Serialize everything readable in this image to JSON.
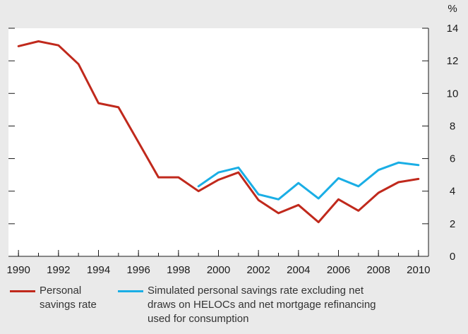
{
  "chart_data": {
    "type": "line",
    "title": "",
    "xlabel": "",
    "ylabel": "%",
    "xlim": [
      1989.5,
      2010.5
    ],
    "ylim": [
      0,
      14
    ],
    "x_ticks": [
      {
        "value": 1990,
        "label": "1990"
      },
      {
        "value": 1992,
        "label": "1992"
      },
      {
        "value": 1994,
        "label": "1994"
      },
      {
        "value": 1996,
        "label": "1996"
      },
      {
        "value": 1998,
        "label": "1998"
      },
      {
        "value": 2000,
        "label": "2000"
      },
      {
        "value": 2002,
        "label": "2002"
      },
      {
        "value": 2004,
        "label": "2004"
      },
      {
        "value": 2006,
        "label": "2006"
      },
      {
        "value": 2008,
        "label": "2008"
      },
      {
        "value": 2010,
        "label": "2010"
      }
    ],
    "y_ticks": [
      {
        "value": 0,
        "label": "0"
      },
      {
        "value": 2,
        "label": "2"
      },
      {
        "value": 4,
        "label": "4"
      },
      {
        "value": 6,
        "label": "6"
      },
      {
        "value": 8,
        "label": "8"
      },
      {
        "value": 10,
        "label": "10"
      },
      {
        "value": 12,
        "label": "12"
      },
      {
        "value": 14,
        "label": "14"
      }
    ],
    "grid": false,
    "legend_position": "bottom",
    "series": [
      {
        "name": "Personal savings rate",
        "color": "#c0291c",
        "x": [
          1990,
          1991,
          1992,
          1993,
          1994,
          1995,
          1996,
          1997,
          1998,
          1999,
          2000,
          2001,
          2002,
          2003,
          2004,
          2005,
          2006,
          2007,
          2008,
          2009,
          2010
        ],
        "y": [
          12.9,
          13.2,
          12.95,
          11.8,
          9.4,
          9.15,
          7.0,
          4.85,
          4.85,
          4.0,
          4.7,
          5.15,
          3.45,
          2.65,
          3.15,
          2.1,
          3.5,
          2.8,
          3.9,
          4.55,
          4.75
        ]
      },
      {
        "name": "Simulated personal savings rate excluding net draws on HELOCs and net mortgage refinancing used for consumption",
        "color": "#1aaee5",
        "x": [
          1999,
          2000,
          2001,
          2002,
          2003,
          2004,
          2005,
          2006,
          2007,
          2008,
          2009,
          2010
        ],
        "y": [
          4.3,
          5.15,
          5.45,
          3.8,
          3.5,
          4.5,
          3.55,
          4.8,
          4.3,
          5.3,
          5.75,
          5.6
        ]
      }
    ]
  },
  "legend": {
    "items": [
      {
        "label_lines": [
          "Personal",
          "savings rate"
        ]
      },
      {
        "label_lines": [
          "Simulated personal savings rate excluding net",
          "draws on HELOCs and net mortgage refinancing",
          "used for consumption"
        ]
      }
    ]
  }
}
